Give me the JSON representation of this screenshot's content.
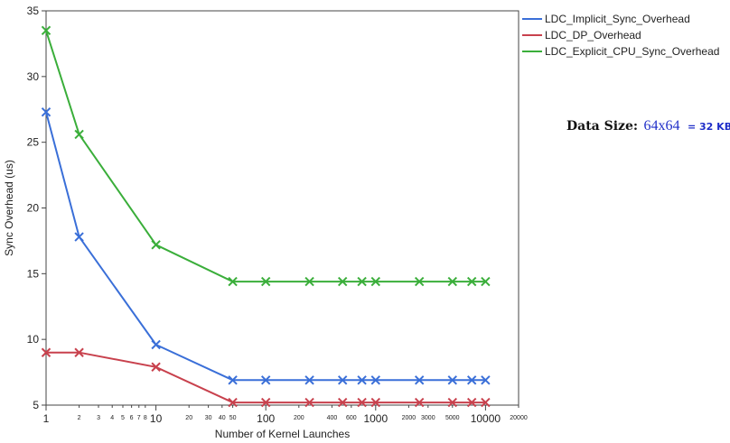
{
  "chart_data": {
    "type": "line",
    "title": "",
    "xlabel": "Number of Kernel Launches",
    "ylabel": "Sync Overhead (us)",
    "x_scale": "log",
    "xlim": [
      1,
      20000
    ],
    "ylim": [
      5,
      35
    ],
    "grid": false,
    "legend_position": "right",
    "x_tick_labels": [
      {
        "value": 1,
        "label": "1",
        "major": true
      },
      {
        "value": 2,
        "label": "2",
        "major": false
      },
      {
        "value": 3,
        "label": "3",
        "major": false
      },
      {
        "value": 4,
        "label": "4",
        "major": false
      },
      {
        "value": 5,
        "label": "5",
        "major": false
      },
      {
        "value": 6,
        "label": "6",
        "major": false
      },
      {
        "value": 7,
        "label": "7",
        "major": false
      },
      {
        "value": 8,
        "label": "8",
        "major": false
      },
      {
        "value": 10,
        "label": "10",
        "major": true
      },
      {
        "value": 20,
        "label": "20",
        "major": false
      },
      {
        "value": 30,
        "label": "30",
        "major": false
      },
      {
        "value": 40,
        "label": "40",
        "major": false
      },
      {
        "value": 50,
        "label": "50",
        "major": false
      },
      {
        "value": 100,
        "label": "100",
        "major": true
      },
      {
        "value": 200,
        "label": "200",
        "major": false
      },
      {
        "value": 400,
        "label": "400",
        "major": false
      },
      {
        "value": 600,
        "label": "600",
        "major": false
      },
      {
        "value": 1000,
        "label": "1000",
        "major": true
      },
      {
        "value": 2000,
        "label": "2000",
        "major": false
      },
      {
        "value": 3000,
        "label": "3000",
        "major": false
      },
      {
        "value": 5000,
        "label": "5000",
        "major": false
      },
      {
        "value": 10000,
        "label": "10000",
        "major": true
      },
      {
        "value": 20000,
        "label": "20000",
        "major": false
      }
    ],
    "y_ticks": [
      5,
      10,
      15,
      20,
      25,
      30,
      35
    ],
    "x": [
      1,
      2,
      10,
      50,
      100,
      250,
      500,
      750,
      1000,
      2500,
      5000,
      7500,
      10000
    ],
    "series": [
      {
        "name": "LDC_Implicit_Sync_Overhead",
        "color": "#3a6fd8",
        "values": [
          27.3,
          17.8,
          9.6,
          6.9,
          6.9,
          6.9,
          6.9,
          6.9,
          6.9,
          6.9,
          6.9,
          6.9,
          6.9
        ]
      },
      {
        "name": "LDC_DP_Overhead",
        "color": "#c8414d",
        "values": [
          9.0,
          9.0,
          7.9,
          5.2,
          5.2,
          5.2,
          5.2,
          5.2,
          5.2,
          5.2,
          5.2,
          5.2,
          5.2
        ]
      },
      {
        "name": "LDC_Explicit_CPU_Sync_Overhead",
        "color": "#3aae3a",
        "values": [
          33.5,
          25.6,
          17.2,
          14.4,
          14.4,
          14.4,
          14.4,
          14.4,
          14.4,
          14.4,
          14.4,
          14.4,
          14.4
        ]
      }
    ]
  },
  "annotation": {
    "label": "Data Size:",
    "value": "64x64",
    "bytes": "= 32 KB"
  }
}
